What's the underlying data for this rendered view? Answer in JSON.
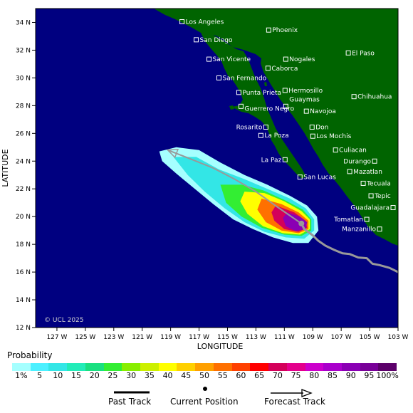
{
  "axes": {
    "ylabel": "LATITUDE",
    "xlabel": "LONGITUDE",
    "lat_ticks": [
      {
        "value": 34,
        "label": "34 N"
      },
      {
        "value": 32,
        "label": "32 N"
      },
      {
        "value": 30,
        "label": "30 N"
      },
      {
        "value": 28,
        "label": "28 N"
      },
      {
        "value": 26,
        "label": "26 N"
      },
      {
        "value": 24,
        "label": "24 N"
      },
      {
        "value": 22,
        "label": "22 N"
      },
      {
        "value": 20,
        "label": "20 N"
      },
      {
        "value": 18,
        "label": "18 N"
      },
      {
        "value": 16,
        "label": "16 N"
      },
      {
        "value": 14,
        "label": "14 N"
      },
      {
        "value": 12,
        "label": "12 N"
      }
    ],
    "lon_ticks": [
      {
        "value": -127,
        "label": "127 W"
      },
      {
        "value": -125,
        "label": "125 W"
      },
      {
        "value": -123,
        "label": "123 W"
      },
      {
        "value": -121,
        "label": "121 W"
      },
      {
        "value": -119,
        "label": "119 W"
      },
      {
        "value": -117,
        "label": "117 W"
      },
      {
        "value": -115,
        "label": "115 W"
      },
      {
        "value": -113,
        "label": "113 W"
      },
      {
        "value": -111,
        "label": "111 W"
      },
      {
        "value": -109,
        "label": "109 W"
      },
      {
        "value": -107,
        "label": "107 W"
      },
      {
        "value": -105,
        "label": "105 W"
      },
      {
        "value": -103,
        "label": "103 W"
      }
    ],
    "lon_range": [
      -128.5,
      -103
    ],
    "lat_range": [
      12,
      35
    ]
  },
  "cities": [
    {
      "name": "Los Angeles",
      "lon": -118.2,
      "lat": 34.05,
      "label_side": "right"
    },
    {
      "name": "Phoenix",
      "lon": -112.1,
      "lat": 33.45,
      "label_side": "right"
    },
    {
      "name": "San Diego",
      "lon": -117.2,
      "lat": 32.75,
      "label_side": "right"
    },
    {
      "name": "El Paso",
      "lon": -106.5,
      "lat": 31.8,
      "label_side": "right"
    },
    {
      "name": "San Vicente",
      "lon": -116.3,
      "lat": 31.35,
      "label_side": "right"
    },
    {
      "name": "Nogales",
      "lon": -110.9,
      "lat": 31.35,
      "label_side": "right"
    },
    {
      "name": "Caborca",
      "lon": -112.15,
      "lat": 30.7,
      "label_side": "right"
    },
    {
      "name": "San Fernando",
      "lon": -115.6,
      "lat": 30.0,
      "label_side": "right"
    },
    {
      "name": "Hermosillo",
      "lon": -110.95,
      "lat": 29.1,
      "label_side": "right"
    },
    {
      "name": "Punta Prieta",
      "lon": -114.2,
      "lat": 28.95,
      "label_side": "right"
    },
    {
      "name": "Chihuahua",
      "lon": -106.1,
      "lat": 28.65,
      "label_side": "right"
    },
    {
      "name": "Guaymas",
      "lon": -110.9,
      "lat": 27.95,
      "label_side": "right_up"
    },
    {
      "name": "Guerrero Negro",
      "lon": -114.05,
      "lat": 27.95,
      "label_side": "right_down"
    },
    {
      "name": "Navojoa",
      "lon": -109.45,
      "lat": 27.6,
      "label_side": "right"
    },
    {
      "name": "Rosarito",
      "lon": -112.3,
      "lat": 26.45,
      "label_side": "left"
    },
    {
      "name": "Don",
      "lon": -109.05,
      "lat": 26.45,
      "label_side": "right"
    },
    {
      "name": "La Poza",
      "lon": -112.65,
      "lat": 25.85,
      "label_side": "right"
    },
    {
      "name": "Los Mochis",
      "lon": -109.0,
      "lat": 25.8,
      "label_side": "right"
    },
    {
      "name": "Culiacan",
      "lon": -107.4,
      "lat": 24.8,
      "label_side": "right"
    },
    {
      "name": "La Paz",
      "lon": -110.95,
      "lat": 24.1,
      "label_side": "left"
    },
    {
      "name": "Durango",
      "lon": -104.65,
      "lat": 24.0,
      "label_side": "left"
    },
    {
      "name": "Mazatlan",
      "lon": -106.4,
      "lat": 23.25,
      "label_side": "right"
    },
    {
      "name": "San Lucas",
      "lon": -109.9,
      "lat": 22.85,
      "label_side": "right"
    },
    {
      "name": "Tecuala",
      "lon": -105.45,
      "lat": 22.4,
      "label_side": "right"
    },
    {
      "name": "Tepic",
      "lon": -104.9,
      "lat": 21.5,
      "label_side": "right"
    },
    {
      "name": "Guadalajara",
      "lon": -103.35,
      "lat": 20.65,
      "label_side": "left"
    },
    {
      "name": "Tomatlan",
      "lon": -105.2,
      "lat": 19.8,
      "label_side": "left"
    },
    {
      "name": "Manzanillo",
      "lon": -104.3,
      "lat": 19.1,
      "label_side": "left"
    }
  ],
  "storm": {
    "past_track": [
      [
        -103.0,
        16.0
      ],
      [
        -103.6,
        16.3
      ],
      [
        -104.3,
        16.5
      ],
      [
        -104.8,
        16.6
      ],
      [
        -105.2,
        17.0
      ],
      [
        -105.8,
        17.05
      ],
      [
        -106.4,
        17.3
      ],
      [
        -106.9,
        17.35
      ],
      [
        -107.5,
        17.6
      ],
      [
        -108.1,
        17.9
      ],
      [
        -108.6,
        18.25
      ],
      [
        -109.0,
        18.65
      ],
      [
        -109.6,
        19.1
      ],
      [
        -109.8,
        19.5
      ]
    ],
    "current_position": [
      -109.8,
      19.5
    ],
    "forecast_track": [
      [
        -109.8,
        19.5
      ],
      [
        -111.5,
        20.7
      ],
      [
        -113.0,
        21.8
      ],
      [
        -114.5,
        22.7
      ],
      [
        -116.0,
        23.5
      ],
      [
        -117.7,
        24.2
      ],
      [
        -119.2,
        24.8
      ]
    ]
  },
  "probability": {
    "title": "Probability",
    "labels": [
      "1%",
      "5",
      "10",
      "15",
      "20",
      "25",
      "30",
      "35",
      "40",
      "45",
      "50",
      "55",
      "60",
      "65",
      "70",
      "75",
      "80",
      "85",
      "90",
      "95",
      "100%"
    ],
    "colors": [
      "#a5ffff",
      "#4cf0ff",
      "#33e6e6",
      "#22ecb8",
      "#19e080",
      "#33ee33",
      "#88ee00",
      "#ccf000",
      "#ffff00",
      "#ffd000",
      "#ffa000",
      "#ff7000",
      "#ff4000",
      "#ff0000",
      "#d4005a",
      "#e4008c",
      "#cc00cc",
      "#aa00cc",
      "#8a00b4",
      "#780098",
      "#5c006a"
    ],
    "contours": [
      {
        "level": 1,
        "points": [
          [
            -119.8,
            24.7
          ],
          [
            -118.6,
            25.0
          ],
          [
            -117.0,
            24.8
          ],
          [
            -115.5,
            23.9
          ],
          [
            -113.8,
            23.0
          ],
          [
            -112.2,
            22.3
          ],
          [
            -110.6,
            21.5
          ],
          [
            -109.4,
            20.8
          ],
          [
            -108.7,
            20.0
          ],
          [
            -108.6,
            19.0
          ],
          [
            -109.3,
            18.1
          ],
          [
            -110.4,
            18.1
          ],
          [
            -111.8,
            18.5
          ],
          [
            -113.2,
            19.1
          ],
          [
            -114.6,
            19.8
          ],
          [
            -116.0,
            20.9
          ],
          [
            -117.3,
            22.0
          ],
          [
            -118.6,
            23.1
          ],
          [
            -119.6,
            24.0
          ]
        ]
      },
      {
        "level": 10,
        "points": [
          [
            -118.8,
            24.3
          ],
          [
            -117.2,
            24.3
          ],
          [
            -115.6,
            23.4
          ],
          [
            -113.8,
            22.7
          ],
          [
            -112.2,
            22.0
          ],
          [
            -110.6,
            21.3
          ],
          [
            -109.5,
            20.6
          ],
          [
            -108.9,
            19.8
          ],
          [
            -108.9,
            19.0
          ],
          [
            -109.6,
            18.4
          ],
          [
            -110.9,
            18.5
          ],
          [
            -112.4,
            18.9
          ],
          [
            -113.8,
            19.6
          ],
          [
            -115.2,
            20.6
          ],
          [
            -116.6,
            21.8
          ],
          [
            -117.8,
            23.0
          ]
        ]
      },
      {
        "level": 25,
        "points": [
          [
            -115.5,
            22.3
          ],
          [
            -114.0,
            22.3
          ],
          [
            -112.5,
            21.9
          ],
          [
            -111.0,
            21.2
          ],
          [
            -109.7,
            20.5
          ],
          [
            -109.1,
            19.8
          ],
          [
            -109.1,
            19.0
          ],
          [
            -109.8,
            18.6
          ],
          [
            -111.0,
            18.7
          ],
          [
            -112.6,
            19.2
          ],
          [
            -114.0,
            20.0
          ],
          [
            -115.1,
            21.0
          ]
        ]
      },
      {
        "level": 40,
        "points": [
          [
            -113.8,
            21.8
          ],
          [
            -112.4,
            21.7
          ],
          [
            -111.0,
            21.1
          ],
          [
            -109.8,
            20.4
          ],
          [
            -109.2,
            19.8
          ],
          [
            -109.2,
            19.1
          ],
          [
            -109.9,
            18.7
          ],
          [
            -111.1,
            18.8
          ],
          [
            -112.5,
            19.3
          ],
          [
            -113.6,
            20.2
          ],
          [
            -114.1,
            21.1
          ]
        ]
      },
      {
        "level": 55,
        "points": [
          [
            -112.6,
            21.3
          ],
          [
            -111.2,
            20.9
          ],
          [
            -110.0,
            20.3
          ],
          [
            -109.3,
            19.7
          ],
          [
            -109.3,
            19.1
          ],
          [
            -110.0,
            18.8
          ],
          [
            -111.2,
            19.0
          ],
          [
            -112.3,
            19.6
          ],
          [
            -112.9,
            20.5
          ]
        ]
      },
      {
        "level": 70,
        "points": [
          [
            -111.6,
            20.8
          ],
          [
            -110.3,
            20.3
          ],
          [
            -109.5,
            19.7
          ],
          [
            -109.4,
            19.2
          ],
          [
            -110.0,
            18.9
          ],
          [
            -111.0,
            19.1
          ],
          [
            -111.7,
            19.7
          ],
          [
            -111.9,
            20.3
          ]
        ]
      },
      {
        "level": 90,
        "points": [
          [
            -110.8,
            20.3
          ],
          [
            -109.9,
            20.0
          ],
          [
            -109.4,
            19.6
          ],
          [
            -109.5,
            19.1
          ],
          [
            -110.2,
            18.95
          ],
          [
            -110.9,
            19.3
          ],
          [
            -111.1,
            19.9
          ]
        ]
      }
    ]
  },
  "copyright": "© UCL 2025",
  "key": {
    "past_track": "Past Track",
    "current_position": "Current Position",
    "forecast_track": "Forecast Track"
  },
  "colors": {
    "ocean": "#000080",
    "land": "#006400",
    "track": "#999999"
  }
}
